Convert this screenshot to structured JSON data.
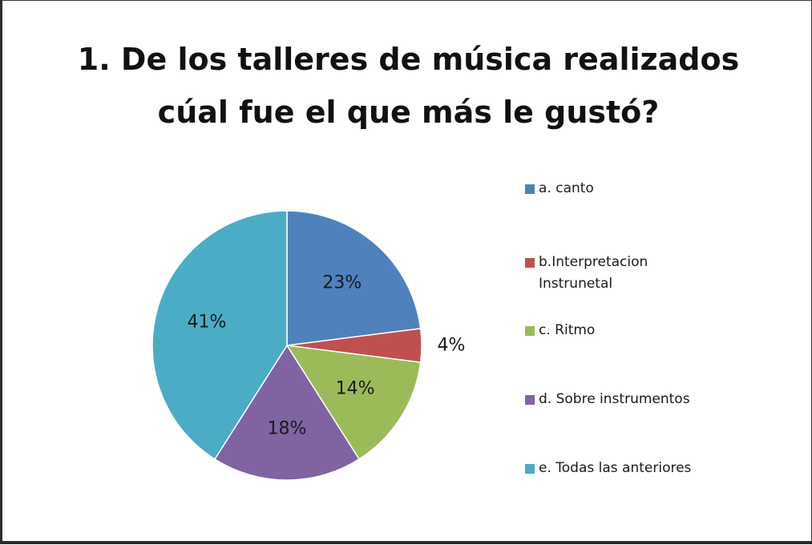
{
  "chart_data": {
    "type": "pie",
    "title_lines": [
      "1. De los talleres de música realizados",
      "cúal fue el que más le gustó?"
    ],
    "slices": [
      {
        "name": "a. canto",
        "value": 23,
        "label": "23%",
        "color": "#4F81BD"
      },
      {
        "name": "b.Interpretacion\nInstrunetal",
        "value": 4,
        "label": "4%",
        "color": "#C0504D"
      },
      {
        "name": "c. Ritmo",
        "value": 14,
        "label": "14%",
        "color": "#9BBB59"
      },
      {
        "name": "d. Sobre instrumentos",
        "value": 18,
        "label": "18%",
        "color": "#8064A2"
      },
      {
        "name": "e. Todas las anteriores",
        "value": 41,
        "label": "41%",
        "color": "#4BACC6"
      }
    ],
    "legend_position": "right"
  }
}
